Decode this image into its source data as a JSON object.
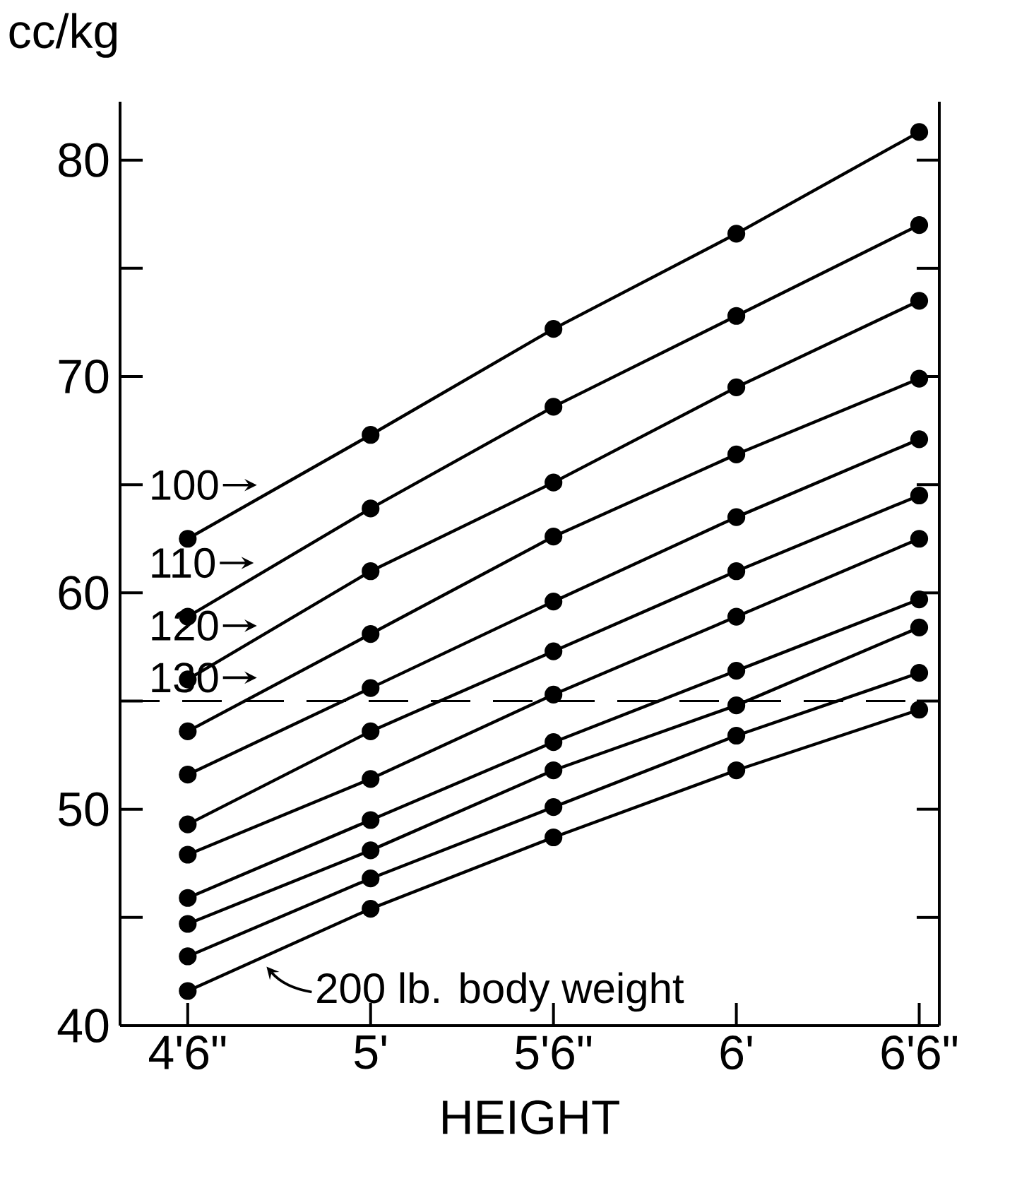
{
  "chart_data": {
    "type": "line",
    "xlabel": "HEIGHT",
    "ylabel": "cc/kg",
    "categories": [
      "4'6\"",
      "5'",
      "5'6\"",
      "6'",
      "6'6\""
    ],
    "ylim": [
      40,
      82.7
    ],
    "yticks": [
      40,
      {
        "value": 45,
        "label": null
      },
      50,
      {
        "value": 55,
        "label": null
      },
      60,
      {
        "value": 65,
        "label": null
      },
      70,
      {
        "value": 75,
        "label": null
      },
      80
    ],
    "marker": "circle",
    "line_style": "solid",
    "legend": "left",
    "ref_lines": [
      {
        "axis": "y",
        "value": 55,
        "line_style": "dashed",
        "color": "#000000"
      }
    ],
    "series": [
      {
        "name": "100",
        "color": "#000000",
        "values": [
          62.5,
          67.3,
          72.2,
          76.6,
          81.3
        ]
      },
      {
        "name": "110",
        "color": "#000000",
        "values": [
          58.9,
          63.9,
          68.6,
          72.8,
          77.0
        ]
      },
      {
        "name": "120",
        "color": "#000000",
        "values": [
          56.0,
          61.0,
          65.1,
          69.5,
          73.5
        ]
      },
      {
        "name": "130",
        "color": "#000000",
        "values": [
          53.6,
          58.1,
          62.6,
          66.4,
          69.9
        ]
      },
      {
        "color": "#000000",
        "values": [
          51.6,
          55.6,
          59.6,
          63.5,
          67.1
        ]
      },
      {
        "color": "#000000",
        "values": [
          49.3,
          53.6,
          57.3,
          61.0,
          64.5
        ]
      },
      {
        "color": "#000000",
        "values": [
          47.9,
          51.4,
          55.3,
          58.9,
          62.5
        ]
      },
      {
        "color": "#000000",
        "values": [
          45.9,
          49.5,
          53.1,
          56.4,
          59.7
        ]
      },
      {
        "color": "#000000",
        "values": [
          44.7,
          48.1,
          51.8,
          54.8,
          58.4
        ]
      },
      {
        "color": "#000000",
        "values": [
          43.2,
          46.8,
          50.1,
          53.4,
          56.3
        ]
      },
      {
        "name": "200 lb. body weight",
        "color": "#000000",
        "values": [
          41.6,
          45.4,
          48.7,
          51.8,
          54.6
        ]
      }
    ]
  }
}
